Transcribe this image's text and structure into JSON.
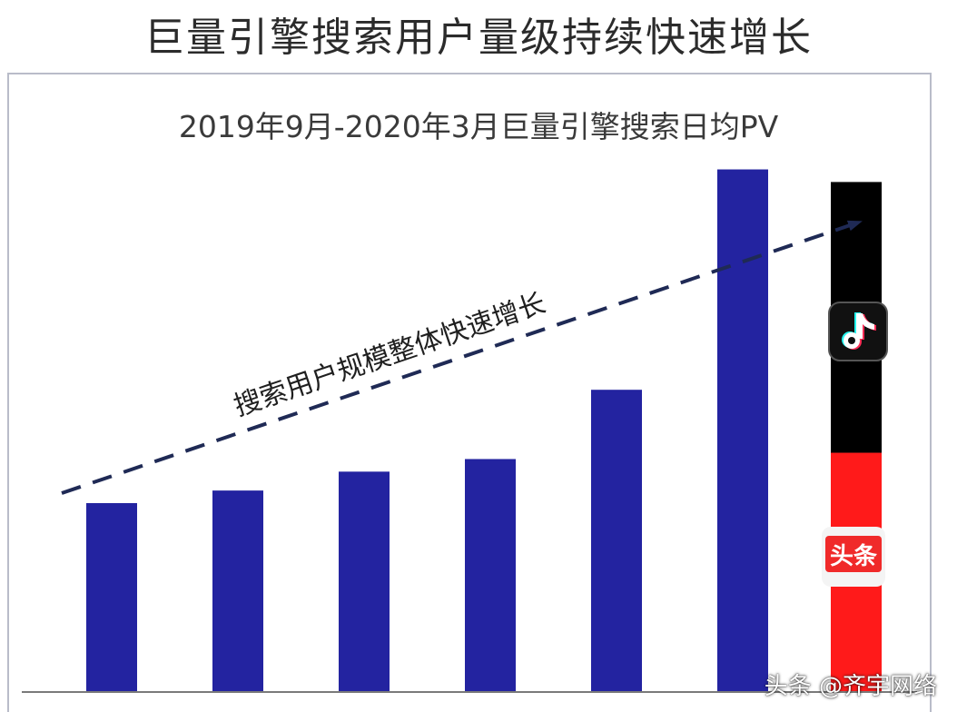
{
  "page": {
    "title": "巨量引擎搜索用户量级持续快速增长",
    "watermark": "头条 @齐宇网络"
  },
  "colors": {
    "bar": "#2323a0",
    "stack_top": "#000000",
    "stack_bottom": "#ff1a1a",
    "trend_line": "#1f2a55",
    "baseline": "#7a7a7a"
  },
  "icons": {
    "douyin_logo": "douyin-logo",
    "toutiao_logo": "toutiao-logo"
  },
  "chart_data": {
    "type": "bar",
    "title": "2019年9月-2020年3月巨量引擎搜索日均PV",
    "xlabel": "",
    "ylabel": "",
    "categories": [
      "",
      "",
      "",
      "",
      "",
      "",
      ""
    ],
    "values": [
      30,
      32,
      35,
      37,
      48,
      83,
      null
    ],
    "stacked_last": {
      "total": 81,
      "segments": [
        {
          "name": "头条",
          "value": 38
        },
        {
          "name": "抖音",
          "value": 43
        }
      ]
    },
    "ylim": [
      0,
      90
    ],
    "grid": false,
    "legend": "none",
    "annotations": [
      {
        "text": "搜索用户规模整体快速增长",
        "type": "trend-arrow"
      }
    ]
  }
}
